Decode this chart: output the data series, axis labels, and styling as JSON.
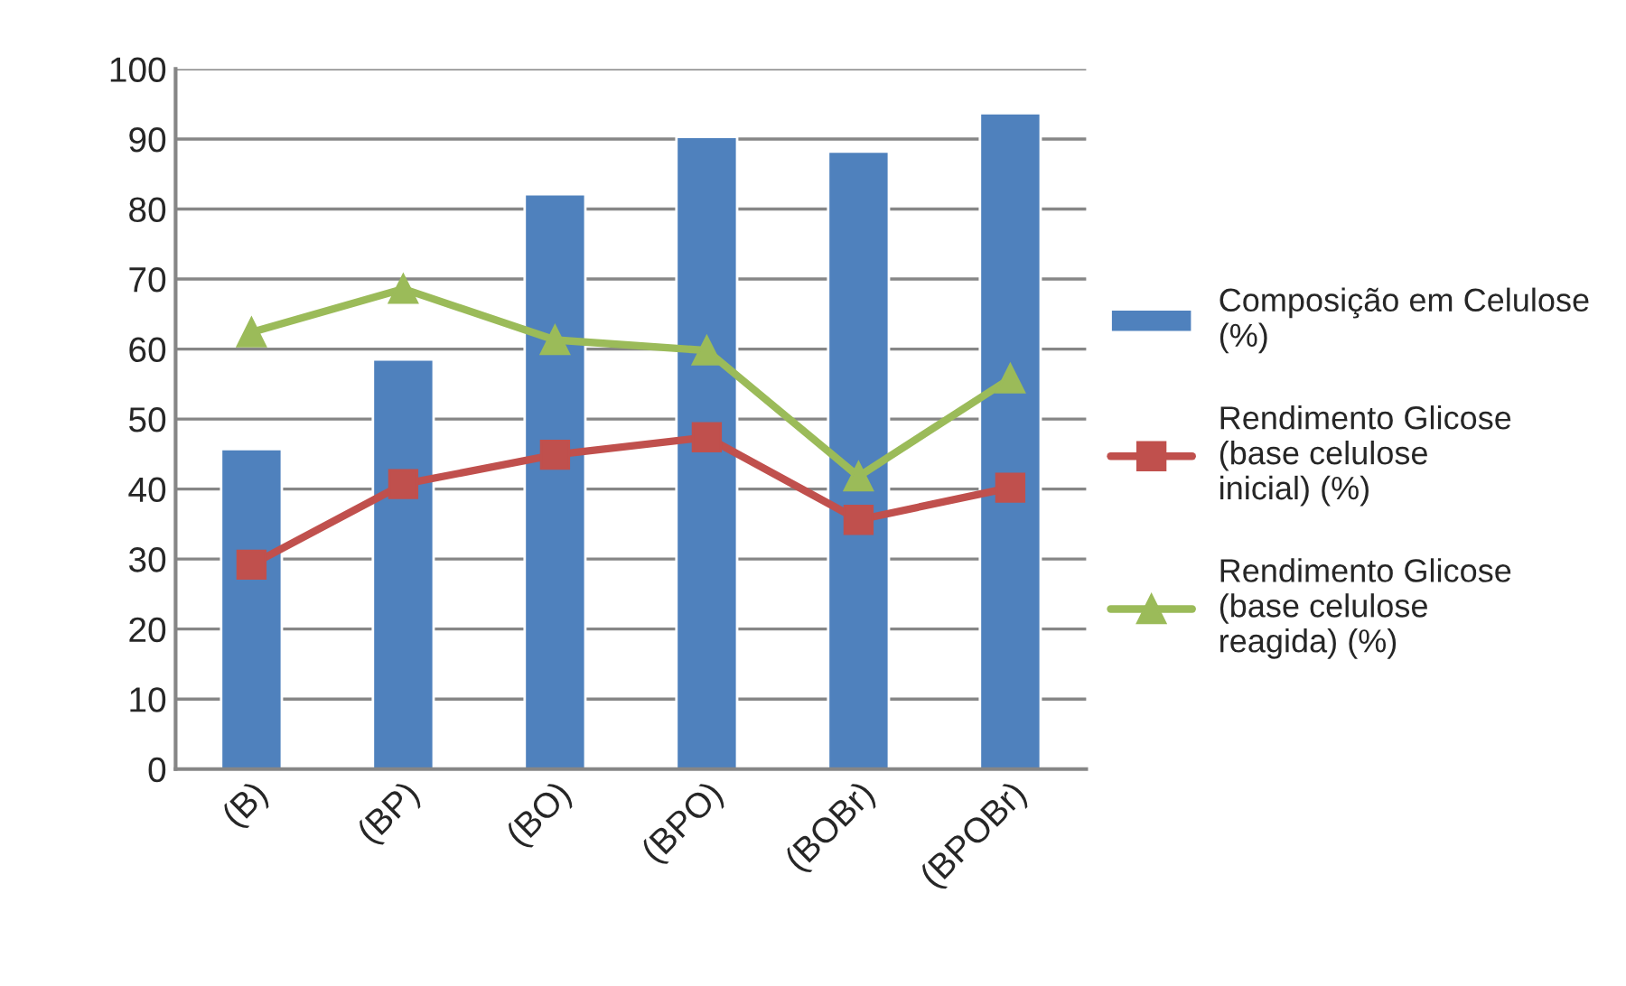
{
  "chart_data": {
    "type": "bar",
    "categories": [
      "(B)",
      "(BP)",
      "(BO)",
      "(BPO)",
      "(BOBr)",
      "(BPOBr)"
    ],
    "series": [
      {
        "name": "Composição em Celulose (%)",
        "color": "#4f81bd",
        "values": [
          45.7,
          58.5,
          82.1,
          90.3,
          88.2,
          93.7
        ]
      },
      {
        "name": "Rendimento Glicose (base celulose inicial) (%)",
        "type": "line",
        "marker": "square",
        "color": "#c0504d",
        "values": [
          29.2,
          40.7,
          44.9,
          47.4,
          35.6,
          40.2
        ]
      },
      {
        "name": "Rendimento Glicose (base celulose reagida) (%)",
        "type": "line",
        "marker": "triangle",
        "color": "#9bbb59",
        "values": [
          62.4,
          68.6,
          61.3,
          59.8,
          41.8,
          55.8
        ]
      }
    ],
    "ylim": [
      0,
      100
    ],
    "yticks": [
      0,
      10,
      20,
      30,
      40,
      50,
      60,
      70,
      80,
      90,
      100
    ],
    "grid": "y",
    "legend": "right"
  }
}
